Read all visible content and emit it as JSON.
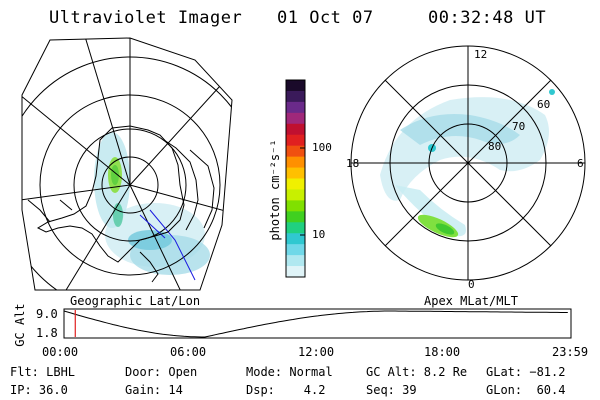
{
  "header": {
    "title": "Ultraviolet Imager",
    "date": "01 Oct 07",
    "time": "00:32:48 UT"
  },
  "geo_map": {
    "label": "Geographic Lat/Lon"
  },
  "apex_map": {
    "label": "Apex MLat/MLT",
    "mlt_labels": {
      "top": "12",
      "left": "18",
      "right": "6",
      "bottom": "0"
    },
    "lat_labels": [
      "60",
      "70",
      "80"
    ]
  },
  "colorbar": {
    "unit_label": "photon cm⁻²s⁻¹",
    "ticks": [
      "100",
      "10"
    ],
    "colors": [
      "#1a0a2a",
      "#3a1a5a",
      "#6a2a8a",
      "#a0287a",
      "#c01030",
      "#e02020",
      "#f05010",
      "#ff9000",
      "#ffc000",
      "#f0f000",
      "#c8f000",
      "#80e000",
      "#40d020",
      "#20d080",
      "#30c8d0",
      "#70d8e8",
      "#b0e8f0",
      "#e0f4f8"
    ]
  },
  "altitude_plot": {
    "ylabel": "GC Alt",
    "yticks": [
      "9.0",
      "1.8"
    ],
    "xticks": [
      "00:00",
      "06:00",
      "12:00",
      "18:00",
      "23:59"
    ],
    "marker_time": "00:32"
  },
  "info": {
    "flt": "Flt: LBHL",
    "ip": "IP: 36.0",
    "door": "Door: Open",
    "gain": "Gain: 14",
    "mode": "Mode: Normal",
    "dsp": "Dsp:    4.2",
    "gc_alt": "GC Alt: 8.2 Re",
    "seq": "Seq: 39",
    "glat": "GLat: −81.2",
    "glon": "GLon:  60.4"
  }
}
